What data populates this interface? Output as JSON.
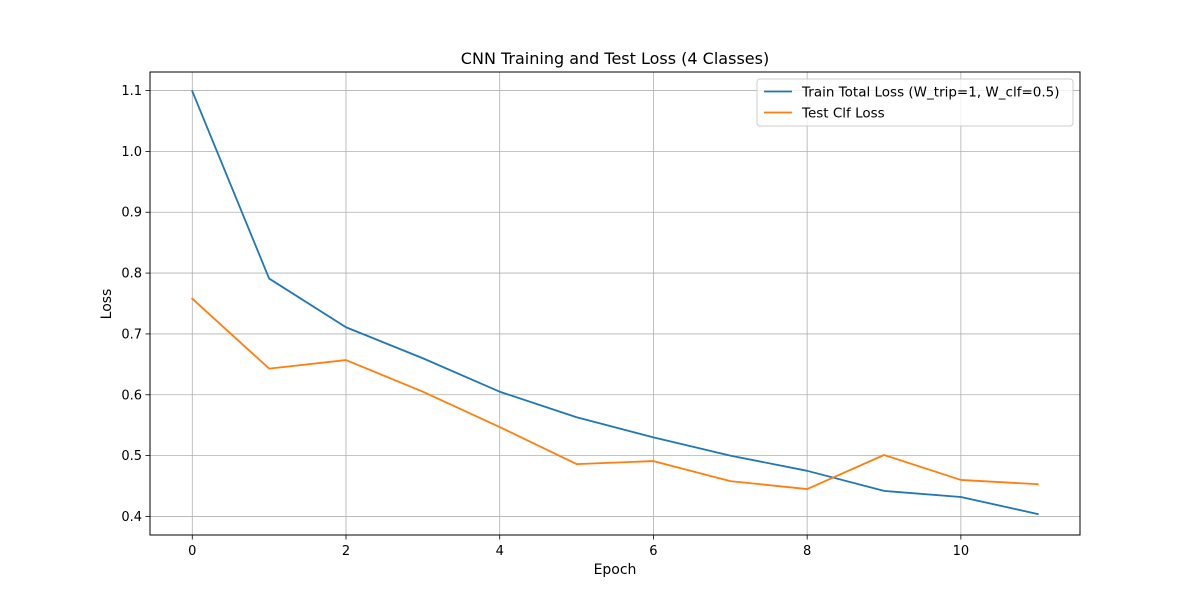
{
  "chart_data": {
    "type": "line",
    "title": "CNN Training and Test Loss (4 Classes)",
    "xlabel": "Epoch",
    "ylabel": "Loss",
    "xlim": [
      -0.55,
      11.55
    ],
    "ylim": [
      0.3695,
      1.1305
    ],
    "x_ticks": [
      0,
      2,
      4,
      6,
      8,
      10
    ],
    "y_ticks": [
      0.4,
      0.5,
      0.6,
      0.7,
      0.8,
      0.9,
      1.0,
      1.1
    ],
    "x_tick_labels": [
      "0",
      "2",
      "4",
      "6",
      "8",
      "10"
    ],
    "y_tick_labels": [
      "0.4",
      "0.5",
      "0.6",
      "0.7",
      "0.8",
      "0.9",
      "1.0",
      "1.1"
    ],
    "grid": true,
    "legend_position": "top-right",
    "x": [
      0,
      1,
      2,
      3,
      4,
      5,
      6,
      7,
      8,
      9,
      10,
      11
    ],
    "series": [
      {
        "name": "Train Total Loss (W_trip=1, W_clf=0.5)",
        "color": "#1f77b4",
        "values": [
          1.099,
          0.791,
          0.711,
          0.66,
          0.605,
          0.563,
          0.53,
          0.5,
          0.475,
          0.442,
          0.432,
          0.404
        ]
      },
      {
        "name": "Test Clf Loss",
        "color": "#ff7f0e",
        "values": [
          0.758,
          0.643,
          0.657,
          0.605,
          0.547,
          0.486,
          0.491,
          0.458,
          0.445,
          0.501,
          0.46,
          0.453
        ]
      }
    ]
  }
}
